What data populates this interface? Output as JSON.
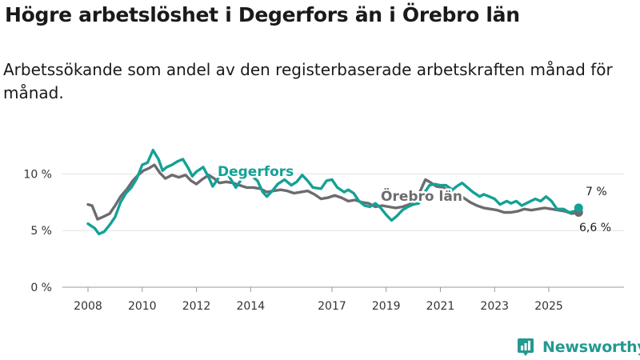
{
  "colors": {
    "degerfors": "#14a196",
    "orebro": "#6d6b70",
    "brand": "#239a90"
  },
  "branding": {
    "name": "Newsworthy",
    "icon": "bar-chart-badge-icon"
  },
  "chart_data": {
    "type": "line",
    "title": "Högre arbetslöshet i Degerfors än i Örebro län",
    "subtitle": "Arbetssökande som andel av den registerbaserade arbetskraften månad för månad.",
    "xlabel": "",
    "ylabel": "",
    "xlim": [
      2008,
      2026.8
    ],
    "ylim": [
      0,
      12.5
    ],
    "x_ticks": [
      {
        "value": 2008,
        "label": "2008"
      },
      {
        "value": 2010,
        "label": "2010"
      },
      {
        "value": 2012,
        "label": "2012"
      },
      {
        "value": 2014,
        "label": "2014"
      },
      {
        "value": 2017,
        "label": "2017"
      },
      {
        "value": 2019,
        "label": "2019"
      },
      {
        "value": 2021,
        "label": "2021"
      },
      {
        "value": 2023,
        "label": "2023"
      },
      {
        "value": 2025,
        "label": "2025"
      }
    ],
    "y_ticks": [
      {
        "value": 0,
        "label": "0 %"
      },
      {
        "value": 5,
        "label": "5 %"
      },
      {
        "value": 10,
        "label": "10 %"
      }
    ],
    "grid": true,
    "series": [
      {
        "name": "Degerfors",
        "color": "#14a196",
        "end_label": "7 %",
        "points": [
          [
            2008.0,
            5.6
          ],
          [
            2008.25,
            5.2
          ],
          [
            2008.4,
            4.7
          ],
          [
            2008.6,
            4.9
          ],
          [
            2008.8,
            5.5
          ],
          [
            2009.0,
            6.2
          ],
          [
            2009.2,
            7.5
          ],
          [
            2009.4,
            8.3
          ],
          [
            2009.6,
            8.8
          ],
          [
            2009.8,
            9.6
          ],
          [
            2010.0,
            10.8
          ],
          [
            2010.2,
            11.0
          ],
          [
            2010.4,
            12.1
          ],
          [
            2010.6,
            11.3
          ],
          [
            2010.75,
            10.3
          ],
          [
            2010.9,
            10.6
          ],
          [
            2011.1,
            10.8
          ],
          [
            2011.3,
            11.1
          ],
          [
            2011.5,
            11.3
          ],
          [
            2011.7,
            10.5
          ],
          [
            2011.85,
            9.8
          ],
          [
            2012.0,
            10.2
          ],
          [
            2012.25,
            10.6
          ],
          [
            2012.45,
            9.7
          ],
          [
            2012.6,
            8.9
          ],
          [
            2012.8,
            9.6
          ],
          [
            2013.0,
            10.3
          ],
          [
            2013.2,
            9.8
          ],
          [
            2013.45,
            8.8
          ],
          [
            2013.6,
            9.3
          ],
          [
            2013.8,
            10.1
          ],
          [
            2014.0,
            9.9
          ],
          [
            2014.25,
            9.4
          ],
          [
            2014.45,
            8.4
          ],
          [
            2014.6,
            8.0
          ],
          [
            2014.8,
            8.5
          ],
          [
            2015.0,
            9.1
          ],
          [
            2015.25,
            9.5
          ],
          [
            2015.5,
            9.0
          ],
          [
            2015.7,
            9.3
          ],
          [
            2015.9,
            9.9
          ],
          [
            2016.1,
            9.4
          ],
          [
            2016.3,
            8.8
          ],
          [
            2016.6,
            8.7
          ],
          [
            2016.8,
            9.4
          ],
          [
            2017.0,
            9.5
          ],
          [
            2017.2,
            8.8
          ],
          [
            2017.45,
            8.4
          ],
          [
            2017.6,
            8.6
          ],
          [
            2017.8,
            8.3
          ],
          [
            2018.0,
            7.6
          ],
          [
            2018.2,
            7.2
          ],
          [
            2018.4,
            7.1
          ],
          [
            2018.6,
            7.4
          ],
          [
            2018.8,
            7.0
          ],
          [
            2019.0,
            6.4
          ],
          [
            2019.2,
            5.9
          ],
          [
            2019.4,
            6.3
          ],
          [
            2019.6,
            6.8
          ],
          [
            2019.8,
            7.1
          ],
          [
            2020.0,
            7.3
          ],
          [
            2020.2,
            7.4
          ],
          [
            2020.4,
            8.3
          ],
          [
            2020.6,
            9.0
          ],
          [
            2020.8,
            9.1
          ],
          [
            2021.0,
            9.0
          ],
          [
            2021.2,
            9.0
          ],
          [
            2021.45,
            8.6
          ],
          [
            2021.6,
            8.9
          ],
          [
            2021.8,
            9.2
          ],
          [
            2022.0,
            8.8
          ],
          [
            2022.2,
            8.4
          ],
          [
            2022.45,
            8.0
          ],
          [
            2022.6,
            8.2
          ],
          [
            2022.8,
            8.0
          ],
          [
            2023.0,
            7.8
          ],
          [
            2023.2,
            7.3
          ],
          [
            2023.45,
            7.6
          ],
          [
            2023.6,
            7.4
          ],
          [
            2023.8,
            7.6
          ],
          [
            2024.0,
            7.2
          ],
          [
            2024.25,
            7.5
          ],
          [
            2024.5,
            7.8
          ],
          [
            2024.7,
            7.6
          ],
          [
            2024.9,
            8.0
          ],
          [
            2025.1,
            7.6
          ],
          [
            2025.3,
            6.9
          ],
          [
            2025.55,
            6.9
          ],
          [
            2025.75,
            6.6
          ],
          [
            2025.95,
            6.7
          ],
          [
            2026.1,
            7.0
          ]
        ]
      },
      {
        "name": "Örebro län",
        "color": "#6d6b70",
        "end_label": "6,6 %",
        "points": [
          [
            2008.0,
            7.3
          ],
          [
            2008.15,
            7.2
          ],
          [
            2008.35,
            6.0
          ],
          [
            2008.55,
            6.2
          ],
          [
            2008.8,
            6.5
          ],
          [
            2009.0,
            7.2
          ],
          [
            2009.2,
            8.0
          ],
          [
            2009.45,
            8.7
          ],
          [
            2009.65,
            9.4
          ],
          [
            2009.85,
            9.9
          ],
          [
            2010.05,
            10.3
          ],
          [
            2010.25,
            10.5
          ],
          [
            2010.45,
            10.8
          ],
          [
            2010.65,
            10.1
          ],
          [
            2010.85,
            9.6
          ],
          [
            2011.1,
            9.9
          ],
          [
            2011.35,
            9.7
          ],
          [
            2011.6,
            9.9
          ],
          [
            2011.8,
            9.4
          ],
          [
            2012.0,
            9.1
          ],
          [
            2012.2,
            9.5
          ],
          [
            2012.45,
            9.9
          ],
          [
            2012.65,
            9.6
          ],
          [
            2012.85,
            9.2
          ],
          [
            2013.1,
            9.3
          ],
          [
            2013.35,
            9.2
          ],
          [
            2013.6,
            9.0
          ],
          [
            2013.85,
            8.8
          ],
          [
            2014.1,
            8.8
          ],
          [
            2014.35,
            8.7
          ],
          [
            2014.6,
            8.4
          ],
          [
            2014.85,
            8.5
          ],
          [
            2015.1,
            8.6
          ],
          [
            2015.35,
            8.5
          ],
          [
            2015.6,
            8.3
          ],
          [
            2015.85,
            8.4
          ],
          [
            2016.1,
            8.5
          ],
          [
            2016.35,
            8.2
          ],
          [
            2016.6,
            7.8
          ],
          [
            2016.85,
            7.9
          ],
          [
            2017.1,
            8.1
          ],
          [
            2017.35,
            7.9
          ],
          [
            2017.6,
            7.6
          ],
          [
            2017.85,
            7.7
          ],
          [
            2018.1,
            7.5
          ],
          [
            2018.35,
            7.4
          ],
          [
            2018.6,
            7.1
          ],
          [
            2018.85,
            7.2
          ],
          [
            2019.1,
            7.1
          ],
          [
            2019.35,
            7.0
          ],
          [
            2019.6,
            7.1
          ],
          [
            2019.85,
            7.3
          ],
          [
            2020.0,
            7.6
          ],
          [
            2020.2,
            8.2
          ],
          [
            2020.45,
            9.5
          ],
          [
            2020.6,
            9.3
          ],
          [
            2020.85,
            8.9
          ],
          [
            2021.1,
            8.8
          ],
          [
            2021.35,
            8.5
          ],
          [
            2021.6,
            8.2
          ],
          [
            2021.85,
            7.9
          ],
          [
            2022.1,
            7.5
          ],
          [
            2022.35,
            7.2
          ],
          [
            2022.6,
            7.0
          ],
          [
            2022.85,
            6.9
          ],
          [
            2023.1,
            6.8
          ],
          [
            2023.35,
            6.6
          ],
          [
            2023.6,
            6.6
          ],
          [
            2023.85,
            6.7
          ],
          [
            2024.1,
            6.9
          ],
          [
            2024.35,
            6.8
          ],
          [
            2024.6,
            6.9
          ],
          [
            2024.85,
            7.0
          ],
          [
            2025.1,
            6.9
          ],
          [
            2025.35,
            6.8
          ],
          [
            2025.6,
            6.7
          ],
          [
            2025.85,
            6.5
          ],
          [
            2026.1,
            6.6
          ]
        ]
      }
    ]
  }
}
